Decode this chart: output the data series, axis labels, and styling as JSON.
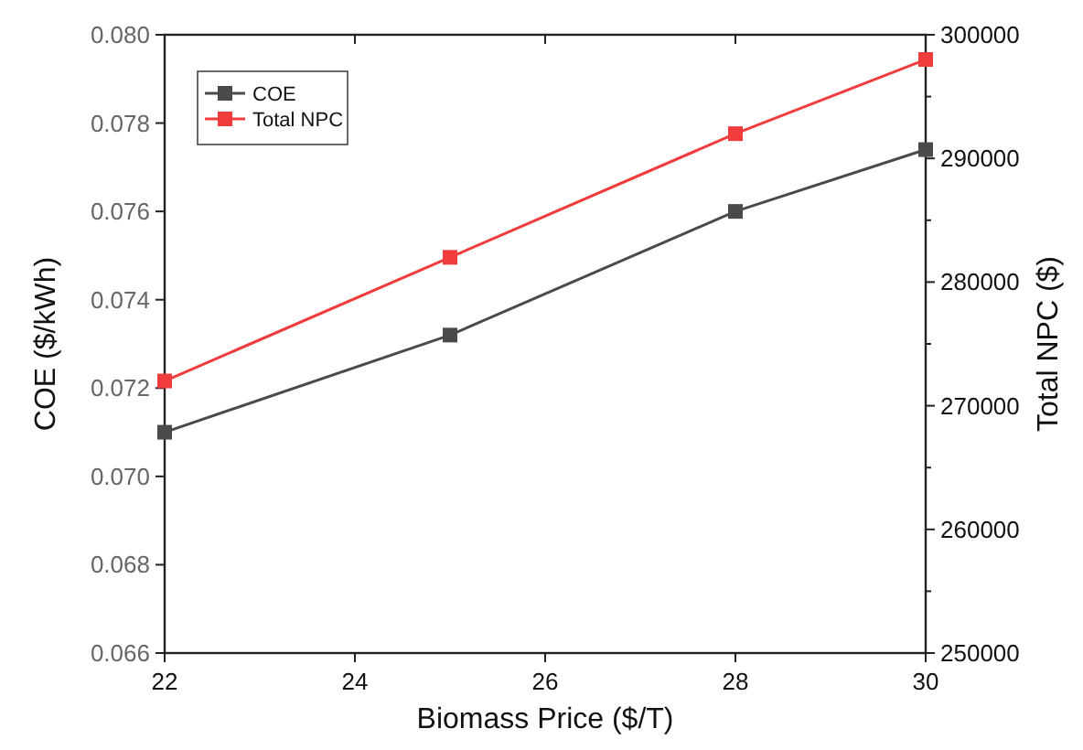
{
  "chart_data": {
    "type": "line",
    "xlabel": "Biomass Price ($/T)",
    "ylabel": "COE ($/kWh)",
    "y2label": "Total NPC ($)",
    "x": [
      22,
      25,
      28,
      30
    ],
    "series": [
      {
        "name": "COE",
        "color": "#4a4a4a",
        "values": [
          0.071,
          0.0732,
          0.076,
          0.0774
        ]
      },
      {
        "name": "Total NPC",
        "color": "#f03c3c",
        "values": [
          272000,
          282000,
          292000,
          298000
        ],
        "axis": "y2"
      }
    ],
    "xlim": [
      22,
      30
    ],
    "xticks": [
      22,
      24,
      26,
      28,
      30
    ],
    "ylim": [
      0.066,
      0.08
    ],
    "yticks": [
      {
        "value": 0.066,
        "label": "0.066"
      },
      {
        "value": 0.068,
        "label": "0.068"
      },
      {
        "value": 0.07,
        "label": "0.070"
      },
      {
        "value": 0.072,
        "label": "0.072"
      },
      {
        "value": 0.074,
        "label": "0.074"
      },
      {
        "value": 0.076,
        "label": "0.076"
      },
      {
        "value": 0.078,
        "label": "0.078"
      },
      {
        "value": 0.08,
        "label": "0.080"
      }
    ],
    "y2lim": [
      250000,
      300000
    ],
    "y2ticks": [
      250000,
      {
        "value": 255000,
        "label": null
      },
      260000,
      {
        "value": 265000,
        "label": null
      },
      270000,
      {
        "value": 275000,
        "label": null
      },
      280000,
      {
        "value": 285000,
        "label": null
      },
      290000,
      {
        "value": 295000,
        "label": null
      },
      300000
    ],
    "marker": "square",
    "line_style": "solid",
    "legend": "top left",
    "grid": false
  }
}
